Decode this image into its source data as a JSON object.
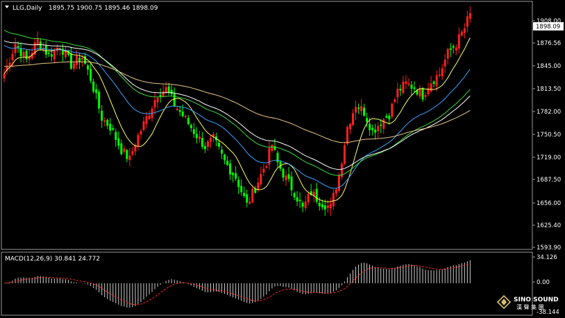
{
  "header": {
    "symbol": "LLG,Daily",
    "ohlc": "1895.75 1900.75 1895.46 1898.09"
  },
  "price_axis": {
    "ticks": [
      "1908.00",
      "1876.56",
      "1845.00",
      "1813.50",
      "1782.00",
      "1750.50",
      "1719.00",
      "1687.50",
      "1656.00",
      "1625.40",
      "1593.90"
    ],
    "current_price": "1898.09"
  },
  "macd_panel": {
    "label": "MACD(12,26,9) 30.841 24.772",
    "ticks": [
      "34.126",
      "0.00",
      "-38.144"
    ]
  },
  "watermark": {
    "brand": "SINO SOUND",
    "subtitle": "漢 聲 集 團"
  },
  "colors": {
    "bull": "#ff2020",
    "bear": "#00ff00",
    "ma1": "#ffff66",
    "ma2": "#3da5ff",
    "ma3": "#3cdc3c",
    "ma4": "#ffffff",
    "ma5": "#e8c88a",
    "signal": "#ff2a2a"
  },
  "chart_data": {
    "type": "candlestick",
    "ylim": [
      1593.9,
      1908.0
    ],
    "anchor_closes": [
      [
        0,
        1818
      ],
      [
        4,
        1858
      ],
      [
        8,
        1836
      ],
      [
        12,
        1862
      ],
      [
        16,
        1842
      ],
      [
        20,
        1856
      ],
      [
        24,
        1830
      ],
      [
        28,
        1840
      ],
      [
        31,
        1812
      ],
      [
        35,
        1760
      ],
      [
        38,
        1748
      ],
      [
        42,
        1718
      ],
      [
        45,
        1705
      ],
      [
        47,
        1728
      ],
      [
        51,
        1760
      ],
      [
        55,
        1792
      ],
      [
        58,
        1798
      ],
      [
        61,
        1778
      ],
      [
        65,
        1758
      ],
      [
        68,
        1742
      ],
      [
        72,
        1722
      ],
      [
        75,
        1732
      ],
      [
        79,
        1702
      ],
      [
        83,
        1682
      ],
      [
        87,
        1645
      ],
      [
        90,
        1668
      ],
      [
        94,
        1702
      ],
      [
        96,
        1725
      ],
      [
        98,
        1700
      ],
      [
        101,
        1680
      ],
      [
        104,
        1662
      ],
      [
        107,
        1640
      ],
      [
        110,
        1662
      ],
      [
        113,
        1650
      ],
      [
        117,
        1642
      ],
      [
        120,
        1685
      ],
      [
        123,
        1748
      ],
      [
        126,
        1778
      ],
      [
        129,
        1768
      ],
      [
        132,
        1742
      ],
      [
        135,
        1755
      ],
      [
        138,
        1765
      ],
      [
        141,
        1795
      ],
      [
        144,
        1805
      ],
      [
        147,
        1800
      ],
      [
        150,
        1790
      ],
      [
        153,
        1808
      ],
      [
        156,
        1818
      ],
      [
        159,
        1845
      ],
      [
        162,
        1858
      ],
      [
        165,
        1878
      ],
      [
        167,
        1898
      ]
    ],
    "macd_range": [
      -38.144,
      34.126
    ],
    "macd_main": 30.841,
    "macd_signal": 24.772
  }
}
